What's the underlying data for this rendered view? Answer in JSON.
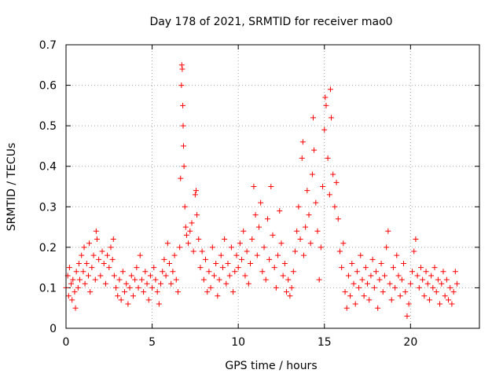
{
  "chart_data": {
    "type": "scatter",
    "title": "Day 178 of 2021, SRMTID for receiver mao0",
    "xlabel": "GPS time / hours",
    "ylabel": "SRMTID / TECUs",
    "xlim": [
      0,
      24
    ],
    "ylim": [
      0,
      0.7
    ],
    "xticks": [
      0,
      5,
      10,
      15,
      20
    ],
    "yticks": [
      0,
      0.1,
      0.2,
      0.3,
      0.4,
      0.5,
      0.6,
      0.7
    ],
    "xtick_labels": [
      "0",
      "5",
      "10",
      "15",
      "20"
    ],
    "ytick_labels": [
      "0",
      "0.1",
      "0.2",
      "0.3",
      "0.4",
      "0.5",
      "0.6",
      "0.7"
    ],
    "grid": true,
    "marker": "plus",
    "color": "#ff0000",
    "series": [
      {
        "name": "SRMTID",
        "points": [
          [
            0.0,
            0.1
          ],
          [
            0.1,
            0.13
          ],
          [
            0.15,
            0.08
          ],
          [
            0.2,
            0.15
          ],
          [
            0.3,
            0.11
          ],
          [
            0.35,
            0.07
          ],
          [
            0.4,
            0.12
          ],
          [
            0.5,
            0.09
          ],
          [
            0.55,
            0.05
          ],
          [
            0.6,
            0.14
          ],
          [
            0.7,
            0.1
          ],
          [
            0.75,
            0.16
          ],
          [
            0.8,
            0.12
          ],
          [
            0.9,
            0.18
          ],
          [
            1.0,
            0.14
          ],
          [
            1.05,
            0.2
          ],
          [
            1.1,
            0.11
          ],
          [
            1.2,
            0.16
          ],
          [
            1.3,
            0.13
          ],
          [
            1.35,
            0.21
          ],
          [
            1.4,
            0.09
          ],
          [
            1.5,
            0.15
          ],
          [
            1.6,
            0.18
          ],
          [
            1.7,
            0.12
          ],
          [
            1.75,
            0.24
          ],
          [
            1.8,
            0.22
          ],
          [
            1.9,
            0.17
          ],
          [
            2.0,
            0.13
          ],
          [
            2.1,
            0.19
          ],
          [
            2.2,
            0.16
          ],
          [
            2.3,
            0.11
          ],
          [
            2.4,
            0.18
          ],
          [
            2.5,
            0.15
          ],
          [
            2.6,
            0.2
          ],
          [
            2.7,
            0.17
          ],
          [
            2.75,
            0.22
          ],
          [
            2.8,
            0.13
          ],
          [
            2.9,
            0.1
          ],
          [
            3.0,
            0.08
          ],
          [
            3.1,
            0.12
          ],
          [
            3.2,
            0.07
          ],
          [
            3.3,
            0.14
          ],
          [
            3.4,
            0.09
          ],
          [
            3.5,
            0.11
          ],
          [
            3.6,
            0.06
          ],
          [
            3.7,
            0.1
          ],
          [
            3.8,
            0.13
          ],
          [
            3.9,
            0.08
          ],
          [
            4.0,
            0.12
          ],
          [
            4.1,
            0.15
          ],
          [
            4.2,
            0.1
          ],
          [
            4.3,
            0.18
          ],
          [
            4.4,
            0.12
          ],
          [
            4.5,
            0.09
          ],
          [
            4.6,
            0.14
          ],
          [
            4.7,
            0.11
          ],
          [
            4.8,
            0.07
          ],
          [
            4.9,
            0.13
          ],
          [
            5.0,
            0.1
          ],
          [
            5.1,
            0.15
          ],
          [
            5.2,
            0.12
          ],
          [
            5.3,
            0.09
          ],
          [
            5.4,
            0.06
          ],
          [
            5.5,
            0.11
          ],
          [
            5.6,
            0.14
          ],
          [
            5.7,
            0.17
          ],
          [
            5.8,
            0.13
          ],
          [
            5.9,
            0.21
          ],
          [
            6.0,
            0.16
          ],
          [
            6.1,
            0.11
          ],
          [
            6.2,
            0.14
          ],
          [
            6.3,
            0.18
          ],
          [
            6.4,
            0.12
          ],
          [
            6.5,
            0.09
          ],
          [
            6.6,
            0.2
          ],
          [
            6.65,
            0.37
          ],
          [
            6.7,
            0.6
          ],
          [
            6.72,
            0.65
          ],
          [
            6.75,
            0.64
          ],
          [
            6.78,
            0.55
          ],
          [
            6.8,
            0.5
          ],
          [
            6.82,
            0.45
          ],
          [
            6.85,
            0.4
          ],
          [
            6.9,
            0.3
          ],
          [
            6.95,
            0.25
          ],
          [
            7.0,
            0.23
          ],
          [
            7.1,
            0.21
          ],
          [
            7.2,
            0.24
          ],
          [
            7.3,
            0.26
          ],
          [
            7.4,
            0.19
          ],
          [
            7.5,
            0.33
          ],
          [
            7.55,
            0.34
          ],
          [
            7.6,
            0.28
          ],
          [
            7.7,
            0.22
          ],
          [
            7.8,
            0.15
          ],
          [
            7.9,
            0.19
          ],
          [
            8.0,
            0.12
          ],
          [
            8.1,
            0.17
          ],
          [
            8.2,
            0.09
          ],
          [
            8.3,
            0.14
          ],
          [
            8.4,
            0.1
          ],
          [
            8.5,
            0.2
          ],
          [
            8.6,
            0.13
          ],
          [
            8.7,
            0.16
          ],
          [
            8.8,
            0.08
          ],
          [
            8.9,
            0.12
          ],
          [
            9.0,
            0.18
          ],
          [
            9.1,
            0.15
          ],
          [
            9.2,
            0.22
          ],
          [
            9.3,
            0.11
          ],
          [
            9.4,
            0.16
          ],
          [
            9.5,
            0.13
          ],
          [
            9.6,
            0.2
          ],
          [
            9.7,
            0.09
          ],
          [
            9.8,
            0.14
          ],
          [
            9.9,
            0.18
          ],
          [
            10.0,
            0.15
          ],
          [
            10.1,
            0.21
          ],
          [
            10.2,
            0.17
          ],
          [
            10.3,
            0.24
          ],
          [
            10.4,
            0.13
          ],
          [
            10.5,
            0.19
          ],
          [
            10.6,
            0.11
          ],
          [
            10.7,
            0.16
          ],
          [
            10.8,
            0.22
          ],
          [
            10.9,
            0.35
          ],
          [
            11.0,
            0.28
          ],
          [
            11.1,
            0.18
          ],
          [
            11.2,
            0.25
          ],
          [
            11.3,
            0.31
          ],
          [
            11.4,
            0.14
          ],
          [
            11.5,
            0.2
          ],
          [
            11.6,
            0.12
          ],
          [
            11.7,
            0.27
          ],
          [
            11.8,
            0.17
          ],
          [
            11.9,
            0.35
          ],
          [
            12.0,
            0.23
          ],
          [
            12.1,
            0.15
          ],
          [
            12.2,
            0.1
          ],
          [
            12.3,
            0.18
          ],
          [
            12.4,
            0.29
          ],
          [
            12.5,
            0.21
          ],
          [
            12.6,
            0.13
          ],
          [
            12.7,
            0.16
          ],
          [
            12.8,
            0.09
          ],
          [
            12.9,
            0.12
          ],
          [
            13.0,
            0.08
          ],
          [
            13.1,
            0.1
          ],
          [
            13.2,
            0.14
          ],
          [
            13.3,
            0.19
          ],
          [
            13.4,
            0.24
          ],
          [
            13.5,
            0.3
          ],
          [
            13.6,
            0.22
          ],
          [
            13.7,
            0.42
          ],
          [
            13.75,
            0.46
          ],
          [
            13.8,
            0.18
          ],
          [
            13.9,
            0.25
          ],
          [
            14.0,
            0.34
          ],
          [
            14.1,
            0.28
          ],
          [
            14.2,
            0.21
          ],
          [
            14.3,
            0.38
          ],
          [
            14.35,
            0.52
          ],
          [
            14.4,
            0.44
          ],
          [
            14.5,
            0.31
          ],
          [
            14.6,
            0.24
          ],
          [
            14.7,
            0.12
          ],
          [
            14.8,
            0.2
          ],
          [
            14.9,
            0.35
          ],
          [
            15.0,
            0.49
          ],
          [
            15.05,
            0.57
          ],
          [
            15.1,
            0.55
          ],
          [
            15.2,
            0.42
          ],
          [
            15.3,
            0.33
          ],
          [
            15.35,
            0.59
          ],
          [
            15.4,
            0.52
          ],
          [
            15.5,
            0.38
          ],
          [
            15.6,
            0.3
          ],
          [
            15.7,
            0.36
          ],
          [
            15.8,
            0.27
          ],
          [
            15.9,
            0.19
          ],
          [
            16.0,
            0.15
          ],
          [
            16.1,
            0.21
          ],
          [
            16.2,
            0.09
          ],
          [
            16.3,
            0.05
          ],
          [
            16.4,
            0.13
          ],
          [
            16.5,
            0.08
          ],
          [
            16.6,
            0.16
          ],
          [
            16.7,
            0.11
          ],
          [
            16.8,
            0.06
          ],
          [
            16.9,
            0.14
          ],
          [
            17.0,
            0.1
          ],
          [
            17.1,
            0.18
          ],
          [
            17.2,
            0.12
          ],
          [
            17.3,
            0.08
          ],
          [
            17.4,
            0.15
          ],
          [
            17.5,
            0.11
          ],
          [
            17.6,
            0.07
          ],
          [
            17.7,
            0.13
          ],
          [
            17.8,
            0.17
          ],
          [
            17.9,
            0.1
          ],
          [
            18.0,
            0.14
          ],
          [
            18.1,
            0.05
          ],
          [
            18.2,
            0.12
          ],
          [
            18.3,
            0.16
          ],
          [
            18.4,
            0.09
          ],
          [
            18.5,
            0.13
          ],
          [
            18.6,
            0.2
          ],
          [
            18.7,
            0.24
          ],
          [
            18.8,
            0.11
          ],
          [
            18.9,
            0.07
          ],
          [
            19.0,
            0.15
          ],
          [
            19.1,
            0.1
          ],
          [
            19.2,
            0.18
          ],
          [
            19.3,
            0.13
          ],
          [
            19.4,
            0.08
          ],
          [
            19.5,
            0.12
          ],
          [
            19.6,
            0.16
          ],
          [
            19.7,
            0.09
          ],
          [
            19.8,
            0.03
          ],
          [
            19.9,
            0.06
          ],
          [
            20.0,
            0.11
          ],
          [
            20.1,
            0.14
          ],
          [
            20.2,
            0.19
          ],
          [
            20.3,
            0.22
          ],
          [
            20.4,
            0.13
          ],
          [
            20.5,
            0.1
          ],
          [
            20.6,
            0.15
          ],
          [
            20.7,
            0.12
          ],
          [
            20.8,
            0.08
          ],
          [
            20.9,
            0.14
          ],
          [
            21.0,
            0.11
          ],
          [
            21.1,
            0.07
          ],
          [
            21.2,
            0.13
          ],
          [
            21.3,
            0.1
          ],
          [
            21.4,
            0.15
          ],
          [
            21.5,
            0.09
          ],
          [
            21.6,
            0.12
          ],
          [
            21.7,
            0.06
          ],
          [
            21.8,
            0.11
          ],
          [
            21.9,
            0.14
          ],
          [
            22.0,
            0.08
          ],
          [
            22.1,
            0.12
          ],
          [
            22.2,
            0.07
          ],
          [
            22.3,
            0.1
          ],
          [
            22.4,
            0.06
          ],
          [
            22.5,
            0.09
          ],
          [
            22.6,
            0.14
          ],
          [
            22.7,
            0.11
          ]
        ]
      }
    ]
  }
}
